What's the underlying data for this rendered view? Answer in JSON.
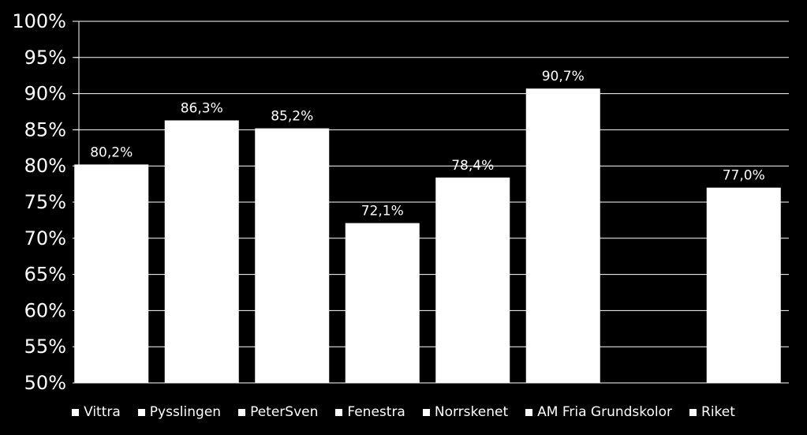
{
  "colors": {
    "background": "#000000",
    "bar": "#ffffff",
    "grid": "#ffffff",
    "text": "#ffffff"
  },
  "chart_data": {
    "type": "bar",
    "categories": [
      "Vittra",
      "Pysslingen",
      "PeterSven",
      "Fenestra",
      "Norrskenet",
      "AM Fria Grundskolor",
      "Riket"
    ],
    "values": [
      80.2,
      86.3,
      85.2,
      72.1,
      78.4,
      90.7,
      77.0
    ],
    "data_labels": [
      "80,2%",
      "86,3%",
      "85,2%",
      "72,1%",
      "78,4%",
      "90,7%",
      "77,0%"
    ],
    "slot_index": [
      0,
      1,
      2,
      3,
      4,
      5,
      7
    ],
    "slot_count": 8,
    "ylim": [
      50,
      100
    ],
    "yticks": [
      50,
      55,
      60,
      65,
      70,
      75,
      80,
      85,
      90,
      95,
      100
    ],
    "ytick_labels": [
      "50%",
      "55%",
      "60%",
      "65%",
      "70%",
      "75%",
      "80%",
      "85%",
      "90%",
      "95%",
      "100%"
    ],
    "grid": true,
    "legend_position": "bottom",
    "title": "",
    "xlabel": "",
    "ylabel": ""
  }
}
